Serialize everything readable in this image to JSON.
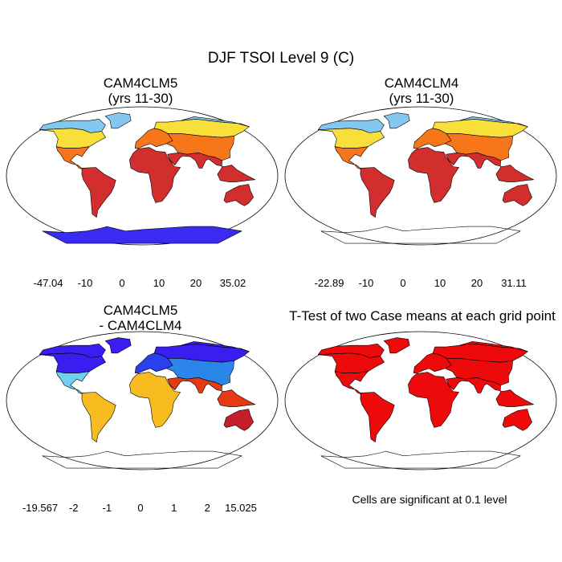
{
  "figure": {
    "title": "DJF TSOI Level 9 (C)",
    "significance_note": "Cells are significant at 0.1 level"
  },
  "chart_data": [
    {
      "type": "heatmap",
      "id": "cam4clm5",
      "title_line1": "CAM4CLM5",
      "title_line2": "(yrs 11-30)",
      "colorbar": {
        "colors": [
          "#3a2bf2",
          "#2c80ea",
          "#84c8f0",
          "#f8df3a",
          "#f77619",
          "#d22e2e"
        ],
        "labels": [
          "-47.04",
          "-10",
          "0",
          "10",
          "20",
          "35.02"
        ],
        "min": -47.04,
        "max": 35.02
      },
      "regions": [
        {
          "name": "north-america-arctic",
          "color": "#84c8f0"
        },
        {
          "name": "north-america-mid",
          "color": "#f8df3a"
        },
        {
          "name": "north-america-south",
          "color": "#f77619"
        },
        {
          "name": "greenland",
          "color": "#84c8f0"
        },
        {
          "name": "south-america",
          "color": "#d22e2e"
        },
        {
          "name": "europe",
          "color": "#f77619"
        },
        {
          "name": "asia-north",
          "color": "#f8df3a"
        },
        {
          "name": "asia-siberia",
          "color": "#84c8f0"
        },
        {
          "name": "asia-south",
          "color": "#f77619"
        },
        {
          "name": "africa",
          "color": "#d22e2e"
        },
        {
          "name": "south-asia",
          "color": "#d22e2e"
        },
        {
          "name": "australia",
          "color": "#d22e2e"
        },
        {
          "name": "antarctica",
          "color": "#3a2bf2"
        }
      ]
    },
    {
      "type": "heatmap",
      "id": "cam4clm4",
      "title_line1": "CAM4CLM4",
      "title_line2": "(yrs 11-30)",
      "colorbar": {
        "colors": [
          "#3a2bf2",
          "#2c80ea",
          "#84c8f0",
          "#f8df3a",
          "#f77619",
          "#d22e2e"
        ],
        "labels": [
          "-22.89",
          "-10",
          "0",
          "10",
          "20",
          "31.11"
        ],
        "min": -22.89,
        "max": 31.11
      },
      "regions": [
        {
          "name": "north-america-arctic",
          "color": "#84c8f0"
        },
        {
          "name": "north-america-mid",
          "color": "#f8df3a"
        },
        {
          "name": "north-america-south",
          "color": "#f77619"
        },
        {
          "name": "greenland",
          "color": "#84c8f0"
        },
        {
          "name": "south-america",
          "color": "#d22e2e"
        },
        {
          "name": "europe",
          "color": "#f77619"
        },
        {
          "name": "asia-north",
          "color": "#f8df3a"
        },
        {
          "name": "asia-siberia",
          "color": "#84c8f0"
        },
        {
          "name": "asia-south",
          "color": "#f77619"
        },
        {
          "name": "africa",
          "color": "#d22e2e"
        },
        {
          "name": "south-asia",
          "color": "#d22e2e"
        },
        {
          "name": "australia",
          "color": "#d22e2e"
        },
        {
          "name": "antarctica",
          "color": "none"
        }
      ]
    },
    {
      "type": "heatmap",
      "id": "difference",
      "title_line1": "CAM4CLM5",
      "title_line2": "- CAM4CLM4",
      "colorbar": {
        "colors": [
          "#3a1ef0",
          "#2a3fee",
          "#2860e8",
          "#2a86e8",
          "#30aaec",
          "#70d0f2",
          "#bfe9f6",
          "#f9f3a0",
          "#f8dd30",
          "#f8bc20",
          "#f89a1b",
          "#f56e16",
          "#e53a14",
          "#e0101a",
          "#c41e2a"
        ],
        "labels": [
          "-19.567",
          "-2",
          "-1",
          "0",
          "1",
          "2",
          "15.025"
        ],
        "min": -19.567,
        "max": 15.025
      },
      "regions": [
        {
          "name": "north-america-arctic",
          "color": "#3a1ef0"
        },
        {
          "name": "north-america-mid",
          "color": "#3a1ef0"
        },
        {
          "name": "north-america-south",
          "color": "#70d0f2"
        },
        {
          "name": "greenland",
          "color": "#3a1ef0"
        },
        {
          "name": "south-america",
          "color": "#f8bc20"
        },
        {
          "name": "europe",
          "color": "#2a3fee"
        },
        {
          "name": "asia-north",
          "color": "#3a1ef0"
        },
        {
          "name": "asia-siberia",
          "color": "#3a1ef0"
        },
        {
          "name": "asia-south",
          "color": "#2a86e8"
        },
        {
          "name": "africa",
          "color": "#f8bc20"
        },
        {
          "name": "south-asia",
          "color": "#e53a14"
        },
        {
          "name": "australia",
          "color": "#c41e2a"
        },
        {
          "name": "antarctica",
          "color": "none"
        }
      ]
    },
    {
      "type": "heatmap",
      "id": "ttest",
      "title_line1": "T-Test of two Case means at each grid point",
      "title_line2": "",
      "regions": [
        {
          "name": "north-america-arctic",
          "color": "#ee0a0a"
        },
        {
          "name": "north-america-mid",
          "color": "#ee0a0a"
        },
        {
          "name": "north-america-south",
          "color": "#ee0a0a"
        },
        {
          "name": "greenland",
          "color": "#ee0a0a"
        },
        {
          "name": "south-america",
          "color": "#ee0a0a"
        },
        {
          "name": "europe",
          "color": "#ee0a0a"
        },
        {
          "name": "asia-north",
          "color": "#ee0a0a"
        },
        {
          "name": "asia-siberia",
          "color": "#ee0a0a"
        },
        {
          "name": "asia-south",
          "color": "#ee0a0a"
        },
        {
          "name": "africa",
          "color": "#ee0a0a"
        },
        {
          "name": "south-asia",
          "color": "#ee0a0a"
        },
        {
          "name": "australia",
          "color": "#ee0a0a"
        },
        {
          "name": "antarctica",
          "color": "none"
        }
      ]
    }
  ]
}
